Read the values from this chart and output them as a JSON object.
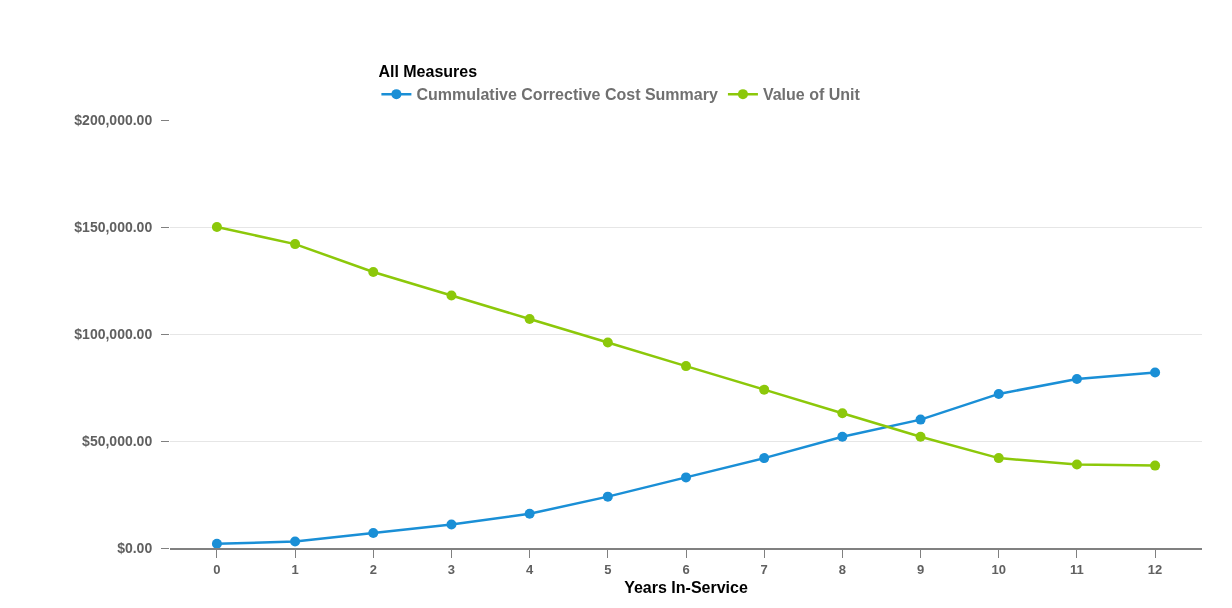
{
  "chart_data": {
    "type": "line",
    "legend_title": "All Measures",
    "xlabel": "Years In-Service",
    "x": [
      0,
      1,
      2,
      3,
      4,
      5,
      6,
      7,
      8,
      9,
      10,
      11,
      12
    ],
    "series": [
      {
        "name": "Cummulative Corrective Cost Summary",
        "color": "#1a8fd6",
        "values": [
          2000,
          3000,
          7000,
          11000,
          16000,
          24000,
          33000,
          42000,
          52000,
          60000,
          72000,
          79000,
          82000
        ]
      },
      {
        "name": "Value of Unit",
        "color": "#8cc80a",
        "values": [
          150000,
          142000,
          129000,
          118000,
          107000,
          96000,
          85000,
          74000,
          63000,
          52000,
          42000,
          39000,
          38500
        ]
      }
    ],
    "xlim": [
      -0.6,
      12.6
    ],
    "xticks": [
      0,
      1,
      2,
      3,
      4,
      5,
      6,
      7,
      8,
      9,
      10,
      11,
      12
    ],
    "ylim": [
      0,
      200000
    ],
    "yticks": [
      {
        "value": 0,
        "label": "$0.00"
      },
      {
        "value": 50000,
        "label": "$50,000.00"
      },
      {
        "value": 100000,
        "label": "$100,000.00"
      },
      {
        "value": 150000,
        "label": "$150,000.00"
      },
      {
        "value": 200000,
        "label": "$200,000.00"
      }
    ],
    "grid": "y",
    "legend": "top",
    "marker": "circle",
    "line_style": "solid"
  }
}
